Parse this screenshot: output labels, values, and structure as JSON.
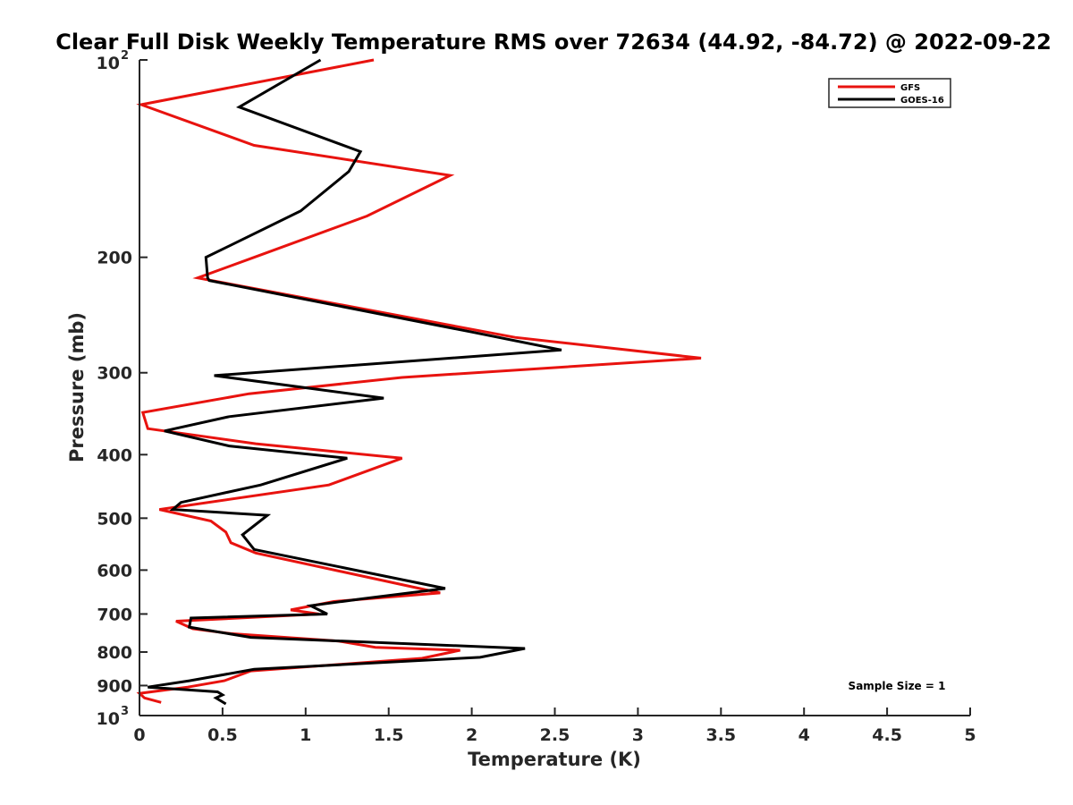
{
  "chart_data": {
    "type": "line",
    "title": "Clear Full Disk Weekly Temperature RMS over 72634 (44.92, -84.72) @ 2022-09-22",
    "xlabel": "Temperature (K)",
    "ylabel": "Pressure (mb)",
    "xlim": [
      0,
      5
    ],
    "ylim": [
      100,
      1000
    ],
    "y_scale": "log",
    "y_reversed": true,
    "grid": false,
    "legend_position": "top-right",
    "x_ticks": [
      "0",
      "0.5",
      "1",
      "1.5",
      "2",
      "2.5",
      "3",
      "3.5",
      "4",
      "4.5",
      "5"
    ],
    "y_ticks": [
      {
        "value": 100,
        "base": "10",
        "exp": "2"
      },
      {
        "value": 200,
        "label": "200"
      },
      {
        "value": 300,
        "label": "300"
      },
      {
        "value": 400,
        "label": "400"
      },
      {
        "value": 500,
        "label": "500"
      },
      {
        "value": 600,
        "label": "600"
      },
      {
        "value": 700,
        "label": "700"
      },
      {
        "value": 800,
        "label": "800"
      },
      {
        "value": 900,
        "label": "900"
      },
      {
        "value": 1000,
        "base": "10",
        "exp": "3"
      }
    ],
    "annotation": "Sample Size = 1",
    "series": [
      {
        "name": "GFS",
        "color": "#e8130f",
        "points": [
          [
            1.41,
            100
          ],
          [
            0.01,
            117
          ],
          [
            0.69,
            135
          ],
          [
            1.87,
            150
          ],
          [
            1.37,
            173
          ],
          [
            0.69,
            200
          ],
          [
            0.35,
            215
          ],
          [
            2.26,
            265
          ],
          [
            3.38,
            285
          ],
          [
            1.58,
            305
          ],
          [
            0.66,
            323
          ],
          [
            0.02,
            345
          ],
          [
            0.05,
            365
          ],
          [
            0.7,
            385
          ],
          [
            1.58,
            405
          ],
          [
            1.14,
            445
          ],
          [
            0.12,
            485
          ],
          [
            0.43,
            505
          ],
          [
            0.52,
            525
          ],
          [
            0.55,
            545
          ],
          [
            0.7,
            565
          ],
          [
            1.81,
            650
          ],
          [
            1.17,
            670
          ],
          [
            0.91,
            690
          ],
          [
            1.08,
            700
          ],
          [
            0.22,
            718
          ],
          [
            0.32,
            737
          ],
          [
            0.55,
            750
          ],
          [
            1.2,
            770
          ],
          [
            1.42,
            787
          ],
          [
            1.93,
            795
          ],
          [
            1.7,
            818
          ],
          [
            0.67,
            855
          ],
          [
            0.51,
            885
          ],
          [
            0.29,
            905
          ],
          [
            0.0,
            925
          ],
          [
            0.03,
            940
          ],
          [
            0.13,
            955
          ]
        ]
      },
      {
        "name": "GOES-16",
        "color": "#000000",
        "points": [
          [
            1.09,
            100
          ],
          [
            0.6,
            118
          ],
          [
            1.33,
            138
          ],
          [
            1.26,
            148
          ],
          [
            0.97,
            170
          ],
          [
            0.4,
            200
          ],
          [
            0.41,
            215
          ],
          [
            0.42,
            217
          ],
          [
            2.0,
            260
          ],
          [
            2.54,
            277
          ],
          [
            0.45,
            303
          ],
          [
            1.47,
            328
          ],
          [
            0.54,
            350
          ],
          [
            0.15,
            368
          ],
          [
            0.54,
            388
          ],
          [
            1.25,
            405
          ],
          [
            0.73,
            445
          ],
          [
            0.25,
            473
          ],
          [
            0.2,
            485
          ],
          [
            0.77,
            495
          ],
          [
            0.62,
            530
          ],
          [
            0.69,
            558
          ],
          [
            1.84,
            640
          ],
          [
            1.35,
            663
          ],
          [
            1.03,
            680
          ],
          [
            1.13,
            700
          ],
          [
            0.31,
            710
          ],
          [
            0.3,
            733
          ],
          [
            0.67,
            760
          ],
          [
            2.32,
            790
          ],
          [
            2.05,
            815
          ],
          [
            0.69,
            850
          ],
          [
            0.3,
            885
          ],
          [
            0.05,
            905
          ],
          [
            0.47,
            920
          ],
          [
            0.5,
            930
          ],
          [
            0.46,
            940
          ],
          [
            0.52,
            960
          ]
        ]
      }
    ]
  }
}
